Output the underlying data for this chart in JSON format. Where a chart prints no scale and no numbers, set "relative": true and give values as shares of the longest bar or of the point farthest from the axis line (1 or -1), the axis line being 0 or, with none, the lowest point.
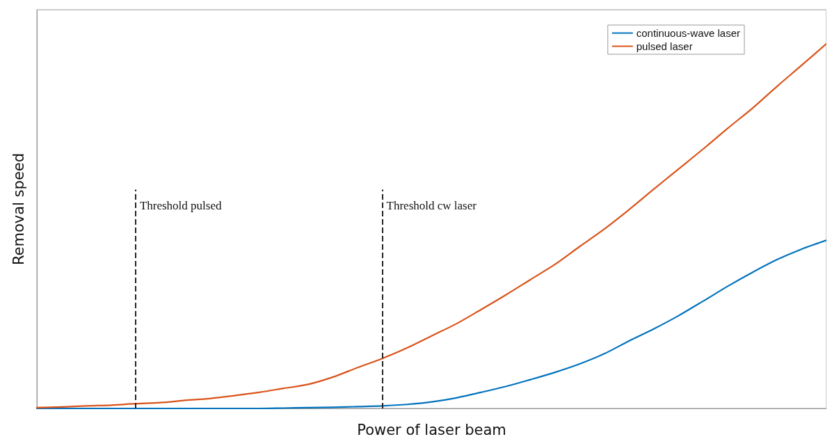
{
  "chart_data": {
    "type": "line",
    "relative": true,
    "xlabel": "Power of laser beam",
    "ylabel": "Removal speed",
    "categories": [
      null,
      null,
      null,
      null,
      null,
      null,
      null,
      null,
      null,
      null,
      null,
      null,
      null,
      null,
      null,
      null,
      null,
      null,
      null,
      null,
      null,
      null,
      null,
      null,
      null,
      null,
      null,
      null,
      null,
      null,
      null,
      null,
      null
    ],
    "series": [
      {
        "name": "continuous-wave laser",
        "color": "#0072bd",
        "values": [
          0,
          0,
          0,
          0,
          0,
          0,
          0,
          0,
          0,
          0,
          0.001,
          0.002,
          0.003,
          0.005,
          0.007,
          0.011,
          0.018,
          0.029,
          0.044,
          0.06,
          0.079,
          0.099,
          0.122,
          0.15,
          0.185,
          0.218,
          0.254,
          0.294,
          0.335,
          0.373,
          0.408,
          0.437,
          0.461
        ]
      },
      {
        "name": "pulsed laser",
        "color": "#d95319",
        "values": [
          0.002,
          0.004,
          0.007,
          0.009,
          0.013,
          0.016,
          0.022,
          0.027,
          0.035,
          0.044,
          0.055,
          0.066,
          0.086,
          0.112,
          0.137,
          0.166,
          0.199,
          0.232,
          0.271,
          0.311,
          0.353,
          0.395,
          0.444,
          0.492,
          0.545,
          0.601,
          0.656,
          0.711,
          0.768,
          0.823,
          0.883,
          0.941,
          1
        ]
      }
    ],
    "annotations": [
      "Threshold pulsed",
      "Threshold cw laser"
    ],
    "legend": "top right",
    "grid": false,
    "marker": "none",
    "line_style": "solid"
  }
}
